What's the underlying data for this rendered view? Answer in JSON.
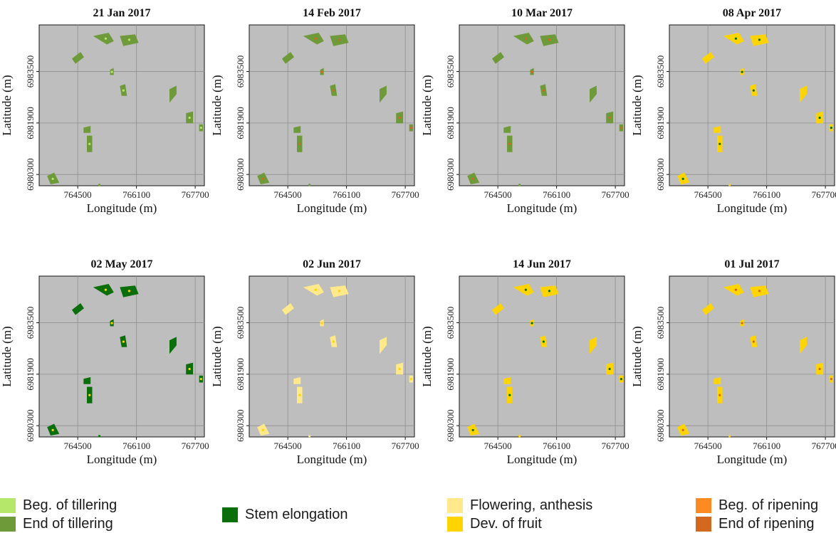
{
  "chart_data": {
    "type": "map-panels",
    "xlabel": "Longitude (m)",
    "ylabel": "Latitude (m)",
    "x_ticks": [
      764500,
      766100,
      767700
    ],
    "y_ticks": [
      6980300,
      6981900,
      6983500
    ],
    "xlim": [
      763450,
      767950
    ],
    "ylim": [
      6979950,
      6984950
    ],
    "panel_background": "#bebebe",
    "grid": true,
    "stages": {
      "beg_tillering": {
        "label": "Beg. of tillering",
        "color": "#b5e86a"
      },
      "end_tillering": {
        "label": "End of tillering",
        "color": "#6e9a3a"
      },
      "stem_elongation": {
        "label": "Stem elongation",
        "color": "#0a6e0a"
      },
      "flowering": {
        "label": "Flowering, anthesis",
        "color": "#ffe98a"
      },
      "dev_fruit": {
        "label": "Dev. of fruit",
        "color": "#ffd400"
      },
      "beg_ripening": {
        "label": "Beg. of ripening",
        "color": "#ff8a22"
      },
      "end_ripening": {
        "label": "End of ripening",
        "color": "#d2691e"
      }
    },
    "panels": [
      {
        "title": "21 Jan 2017",
        "stages": [
          "end_tillering",
          "beg_tillering"
        ]
      },
      {
        "title": "14 Feb 2017",
        "stages": [
          "end_tillering",
          "end_ripening"
        ]
      },
      {
        "title": "10 Mar 2017",
        "stages": [
          "end_tillering",
          "end_ripening"
        ]
      },
      {
        "title": "08 Apr 2017",
        "stages": [
          "dev_fruit",
          "stem_elongation"
        ]
      },
      {
        "title": "02 May 2017",
        "stages": [
          "stem_elongation",
          "dev_fruit"
        ]
      },
      {
        "title": "02 Jun 2017",
        "stages": [
          "flowering",
          "dev_fruit"
        ]
      },
      {
        "title": "14 Jun 2017",
        "stages": [
          "dev_fruit",
          "stem_elongation"
        ]
      },
      {
        "title": "01 Jul 2017",
        "stages": [
          "dev_fruit",
          "end_ripening"
        ]
      }
    ],
    "legend_columns": [
      [
        "beg_tillering",
        "end_tillering"
      ],
      [
        "stem_elongation"
      ],
      [
        "flowering",
        "dev_fruit"
      ],
      [
        "beg_ripening",
        "end_ripening"
      ]
    ]
  }
}
